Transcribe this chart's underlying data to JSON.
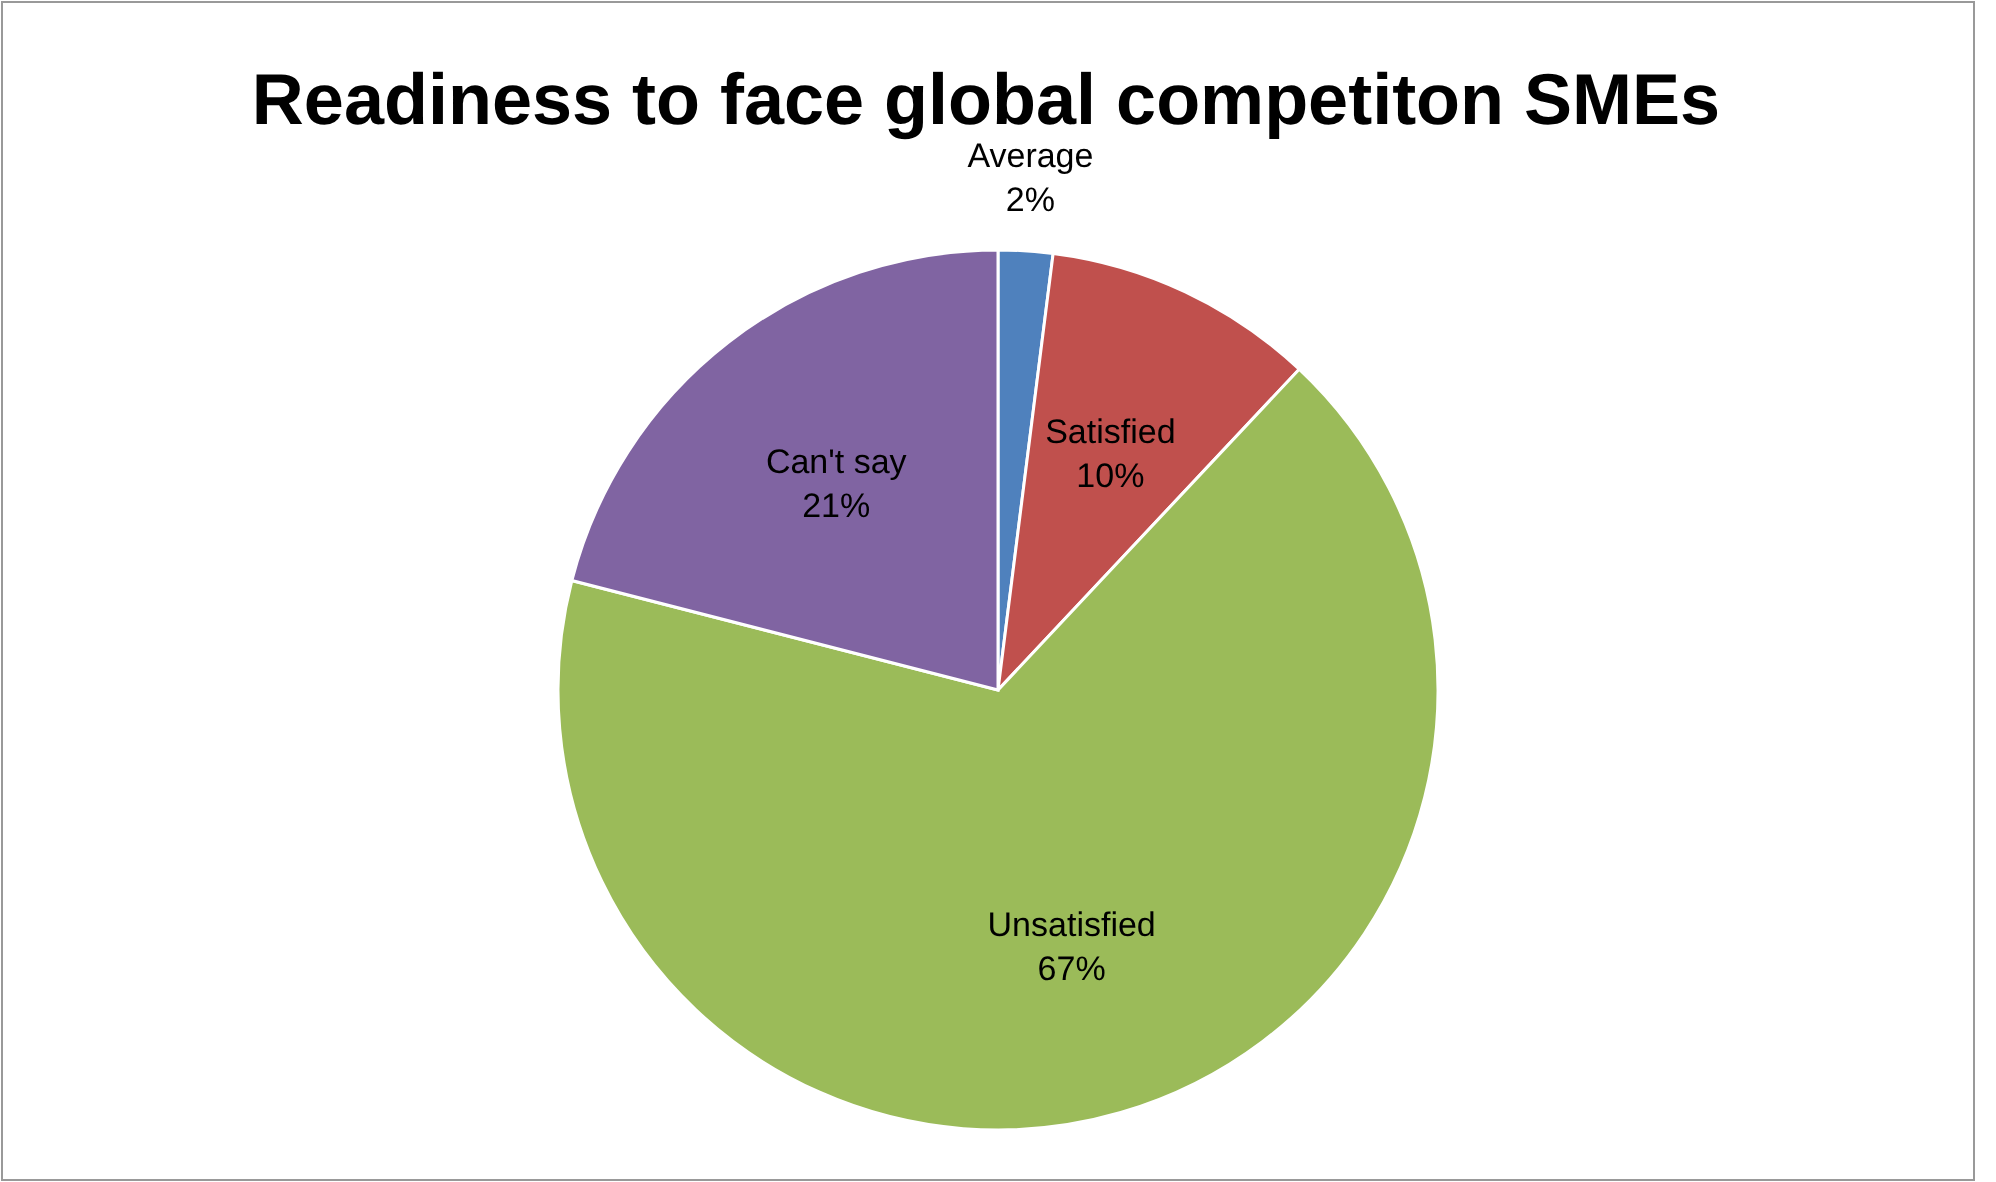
{
  "chart_data": {
    "type": "pie",
    "title": "Readiness to face global competiton SMEs",
    "categories": [
      "Average",
      "Satisfied",
      "Unsatisfied",
      "Can't say"
    ],
    "values": [
      2,
      10,
      67,
      21
    ],
    "value_labels": [
      "2%",
      "10%",
      "67%",
      "21%"
    ],
    "colors": [
      "#4f81bd",
      "#c0504d",
      "#9bbb59",
      "#8064a2"
    ]
  }
}
